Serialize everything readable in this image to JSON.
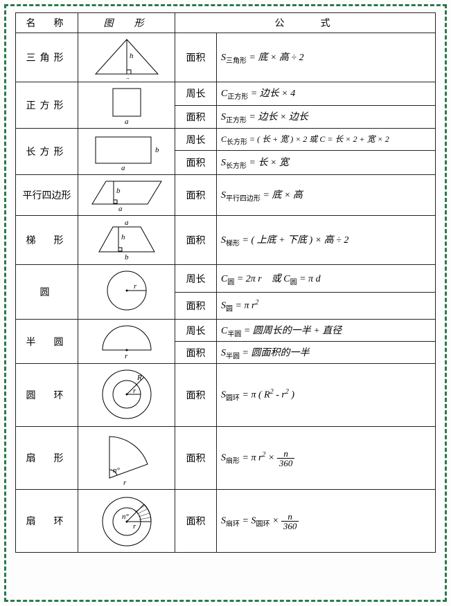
{
  "header": {
    "col_name": "名　称",
    "col_shape": "图　形",
    "col_formula": "公　　式"
  },
  "rows": {
    "triangle": {
      "name": "三角形",
      "ftype1": "面积",
      "formula1_html": "<i>S</i><span class='sub'>三角形</span> = 底 × 高 ÷ 2"
    },
    "square": {
      "name": "正方形",
      "ftype1": "周长",
      "formula1_html": "<i>C</i><span class='sub'>正方形</span> = 边长 × 4",
      "ftype2": "面积",
      "formula2_html": "<i>S</i><span class='sub'>正方形</span> = 边长 × 边长"
    },
    "rectangle": {
      "name": "长方形",
      "ftype1": "周长",
      "formula1_html": "<i>C</i><span class='sub'>长方形</span> = ( 长 + 宽 ) × 2 或 <i>C</i> = 长 × 2 + 宽 × 2",
      "ftype2": "面积",
      "formula2_html": "<i>S</i><span class='sub'>长方形</span> = 长 × 宽"
    },
    "parallelogram": {
      "name": "平行四边形",
      "ftype1": "面积",
      "formula1_html": "<i>S</i><span class='sub'>平行四边形</span> = 底 × 高"
    },
    "trapezoid": {
      "name": "梯　形",
      "ftype1": "面积",
      "formula1_html": "<i>S</i><span class='sub'>梯形</span> = ( 上底 + 下底 ) × 高 ÷ 2"
    },
    "circle": {
      "name": "圆",
      "ftype1": "周长",
      "formula1_html": "<i>C</i><span class='sub'>圆</span> = 2π r　或 <i>C</i><span class='sub'>圆</span> = π d",
      "ftype2": "面积",
      "formula2_html": "<i>S</i><span class='sub'>圆</span> = π r<sup>2</sup>"
    },
    "semicircle": {
      "name": "半　圆",
      "ftype1": "周长",
      "formula1_html": "<i>C</i><span class='sub'>半圆</span> = 圆周长的一半 + 直径",
      "ftype2": "面积",
      "formula2_html": "<i>S</i><span class='sub'>半圆</span> = 圆面积的一半"
    },
    "annulus": {
      "name": "圆　环",
      "ftype1": "面积",
      "formula1_html": "<i>S</i><span class='sub'>圆环</span> = π ( <i>R</i><sup>2</sup> - r<sup>2</sup> )"
    },
    "sector": {
      "name": "扇　形",
      "ftype1": "面积",
      "formula1_html": "<i>S</i><span class='sub'>扇形</span> = π r<sup>2</sup> × <span class='frac'><span class='num'>n</span><span class='den'>360</span></span>"
    },
    "sector_ring": {
      "name": "扇　环",
      "ftype1": "面积",
      "formula1_html": "<i>S</i><span class='sub'>扇环</span> = <i>S</i><span class='sub'>圆环</span> × <span class='frac'><span class='num'>n</span><span class='den'>360</span></span>"
    }
  },
  "style": {
    "border_color": "#222222",
    "dash_border_color": "#2a7a4a",
    "background": "#fdfdfd",
    "stroke": "#000000",
    "font_size": 14,
    "sub_font_size": 10
  }
}
